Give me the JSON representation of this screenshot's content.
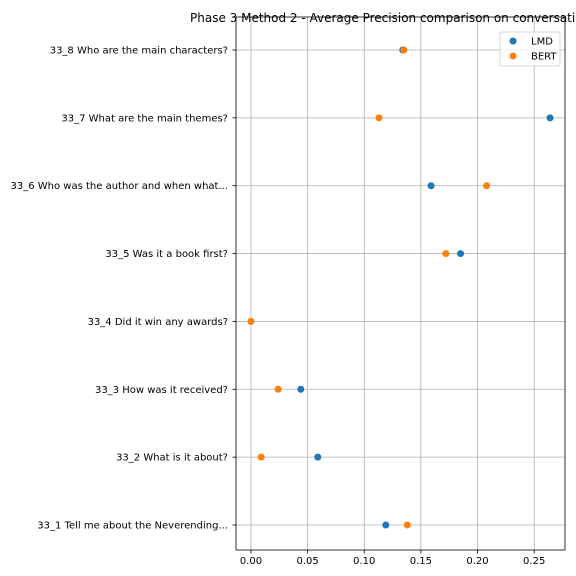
{
  "chart_data": {
    "type": "scatter",
    "title": "Phase 3 Method 2 - Average Precision comparison on conversatio",
    "xlabel": "",
    "ylabel": "",
    "categories": [
      "33_1 Tell me about the Neverending...",
      "33_2 What is it about?",
      "33_3 How was it received?",
      "33_4 Did it win any awards?",
      "33_5 Was it a book first?",
      "33_6 Who was the author and when what...",
      "33_7 What are the main themes?",
      "33_8 Who are the main characters?"
    ],
    "series": [
      {
        "name": "LMD",
        "color": "#1f77b4",
        "values": [
          0.119,
          0.059,
          0.044,
          0.0,
          0.185,
          0.159,
          0.264,
          0.134
        ]
      },
      {
        "name": "BERT",
        "color": "#ff7f0e",
        "values": [
          0.138,
          0.009,
          0.024,
          0.0,
          0.172,
          0.208,
          0.113,
          0.135
        ]
      }
    ],
    "xlim": [
      -0.0132,
      0.2772
    ],
    "xticks": [
      "0.00",
      "0.05",
      "0.10",
      "0.15",
      "0.20",
      "0.25"
    ],
    "grid": true,
    "legend": "top-right"
  }
}
